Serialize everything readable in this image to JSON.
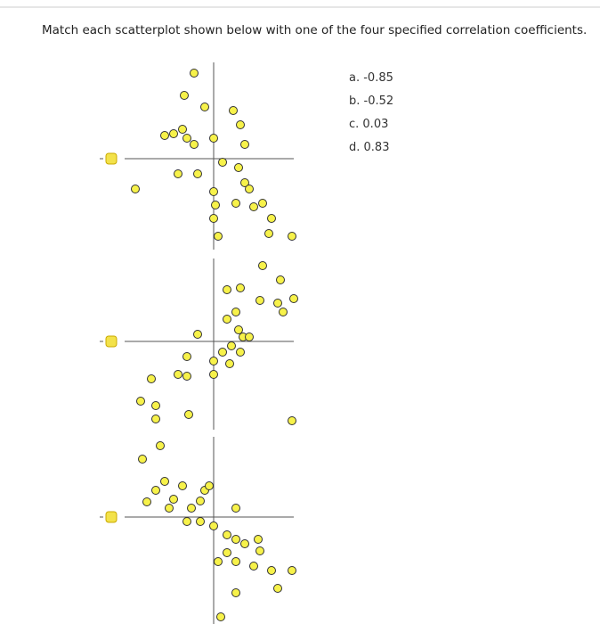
{
  "question": "Match each scatterplot shown below with one of the four specified correlation coefficients.",
  "options": [
    "a. -0.85",
    "b. -0.52",
    "c. 0.03",
    "d. 0.83"
  ]
}
